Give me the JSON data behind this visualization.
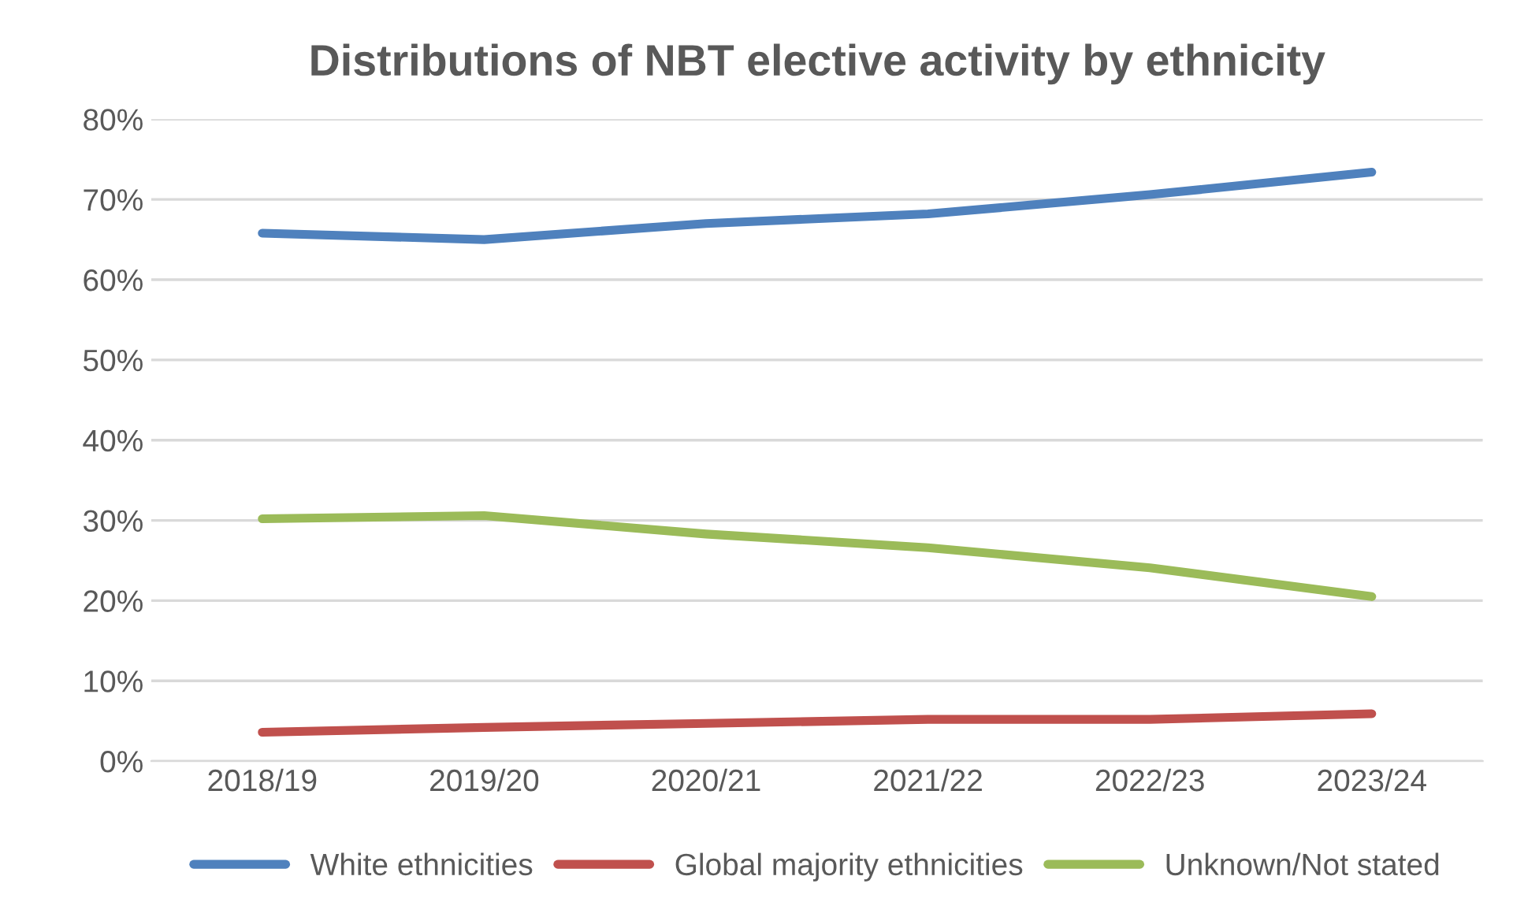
{
  "chart_data": {
    "type": "line",
    "title": "Distributions of NBT elective activity by ethnicity",
    "categories": [
      "2018/19",
      "2019/20",
      "2020/21",
      "2021/22",
      "2022/23",
      "2023/24"
    ],
    "series": [
      {
        "name": "White ethnicities",
        "color": "#4f81bd",
        "values": [
          65.8,
          65.0,
          67.0,
          68.2,
          70.6,
          73.4
        ]
      },
      {
        "name": "Global majority ethnicities",
        "color": "#c0504d",
        "values": [
          3.6,
          4.2,
          4.7,
          5.2,
          5.2,
          5.9
        ]
      },
      {
        "name": "Unknown/Not stated",
        "color": "#9bbb59",
        "values": [
          30.2,
          30.6,
          28.3,
          26.6,
          24.1,
          20.5
        ]
      }
    ],
    "ylim": [
      0,
      80
    ],
    "yticks": [
      {
        "value": 0,
        "label": "0%"
      },
      {
        "value": 10,
        "label": "10%"
      },
      {
        "value": 20,
        "label": "20%"
      },
      {
        "value": 30,
        "label": "30%"
      },
      {
        "value": 40,
        "label": "40%"
      },
      {
        "value": 50,
        "label": "50%"
      },
      {
        "value": 60,
        "label": "60%"
      },
      {
        "value": 70,
        "label": "70%"
      },
      {
        "value": 80,
        "label": "80%"
      }
    ],
    "grid": "y",
    "legend": "bottom",
    "marker": "none",
    "line_style": "solid"
  }
}
